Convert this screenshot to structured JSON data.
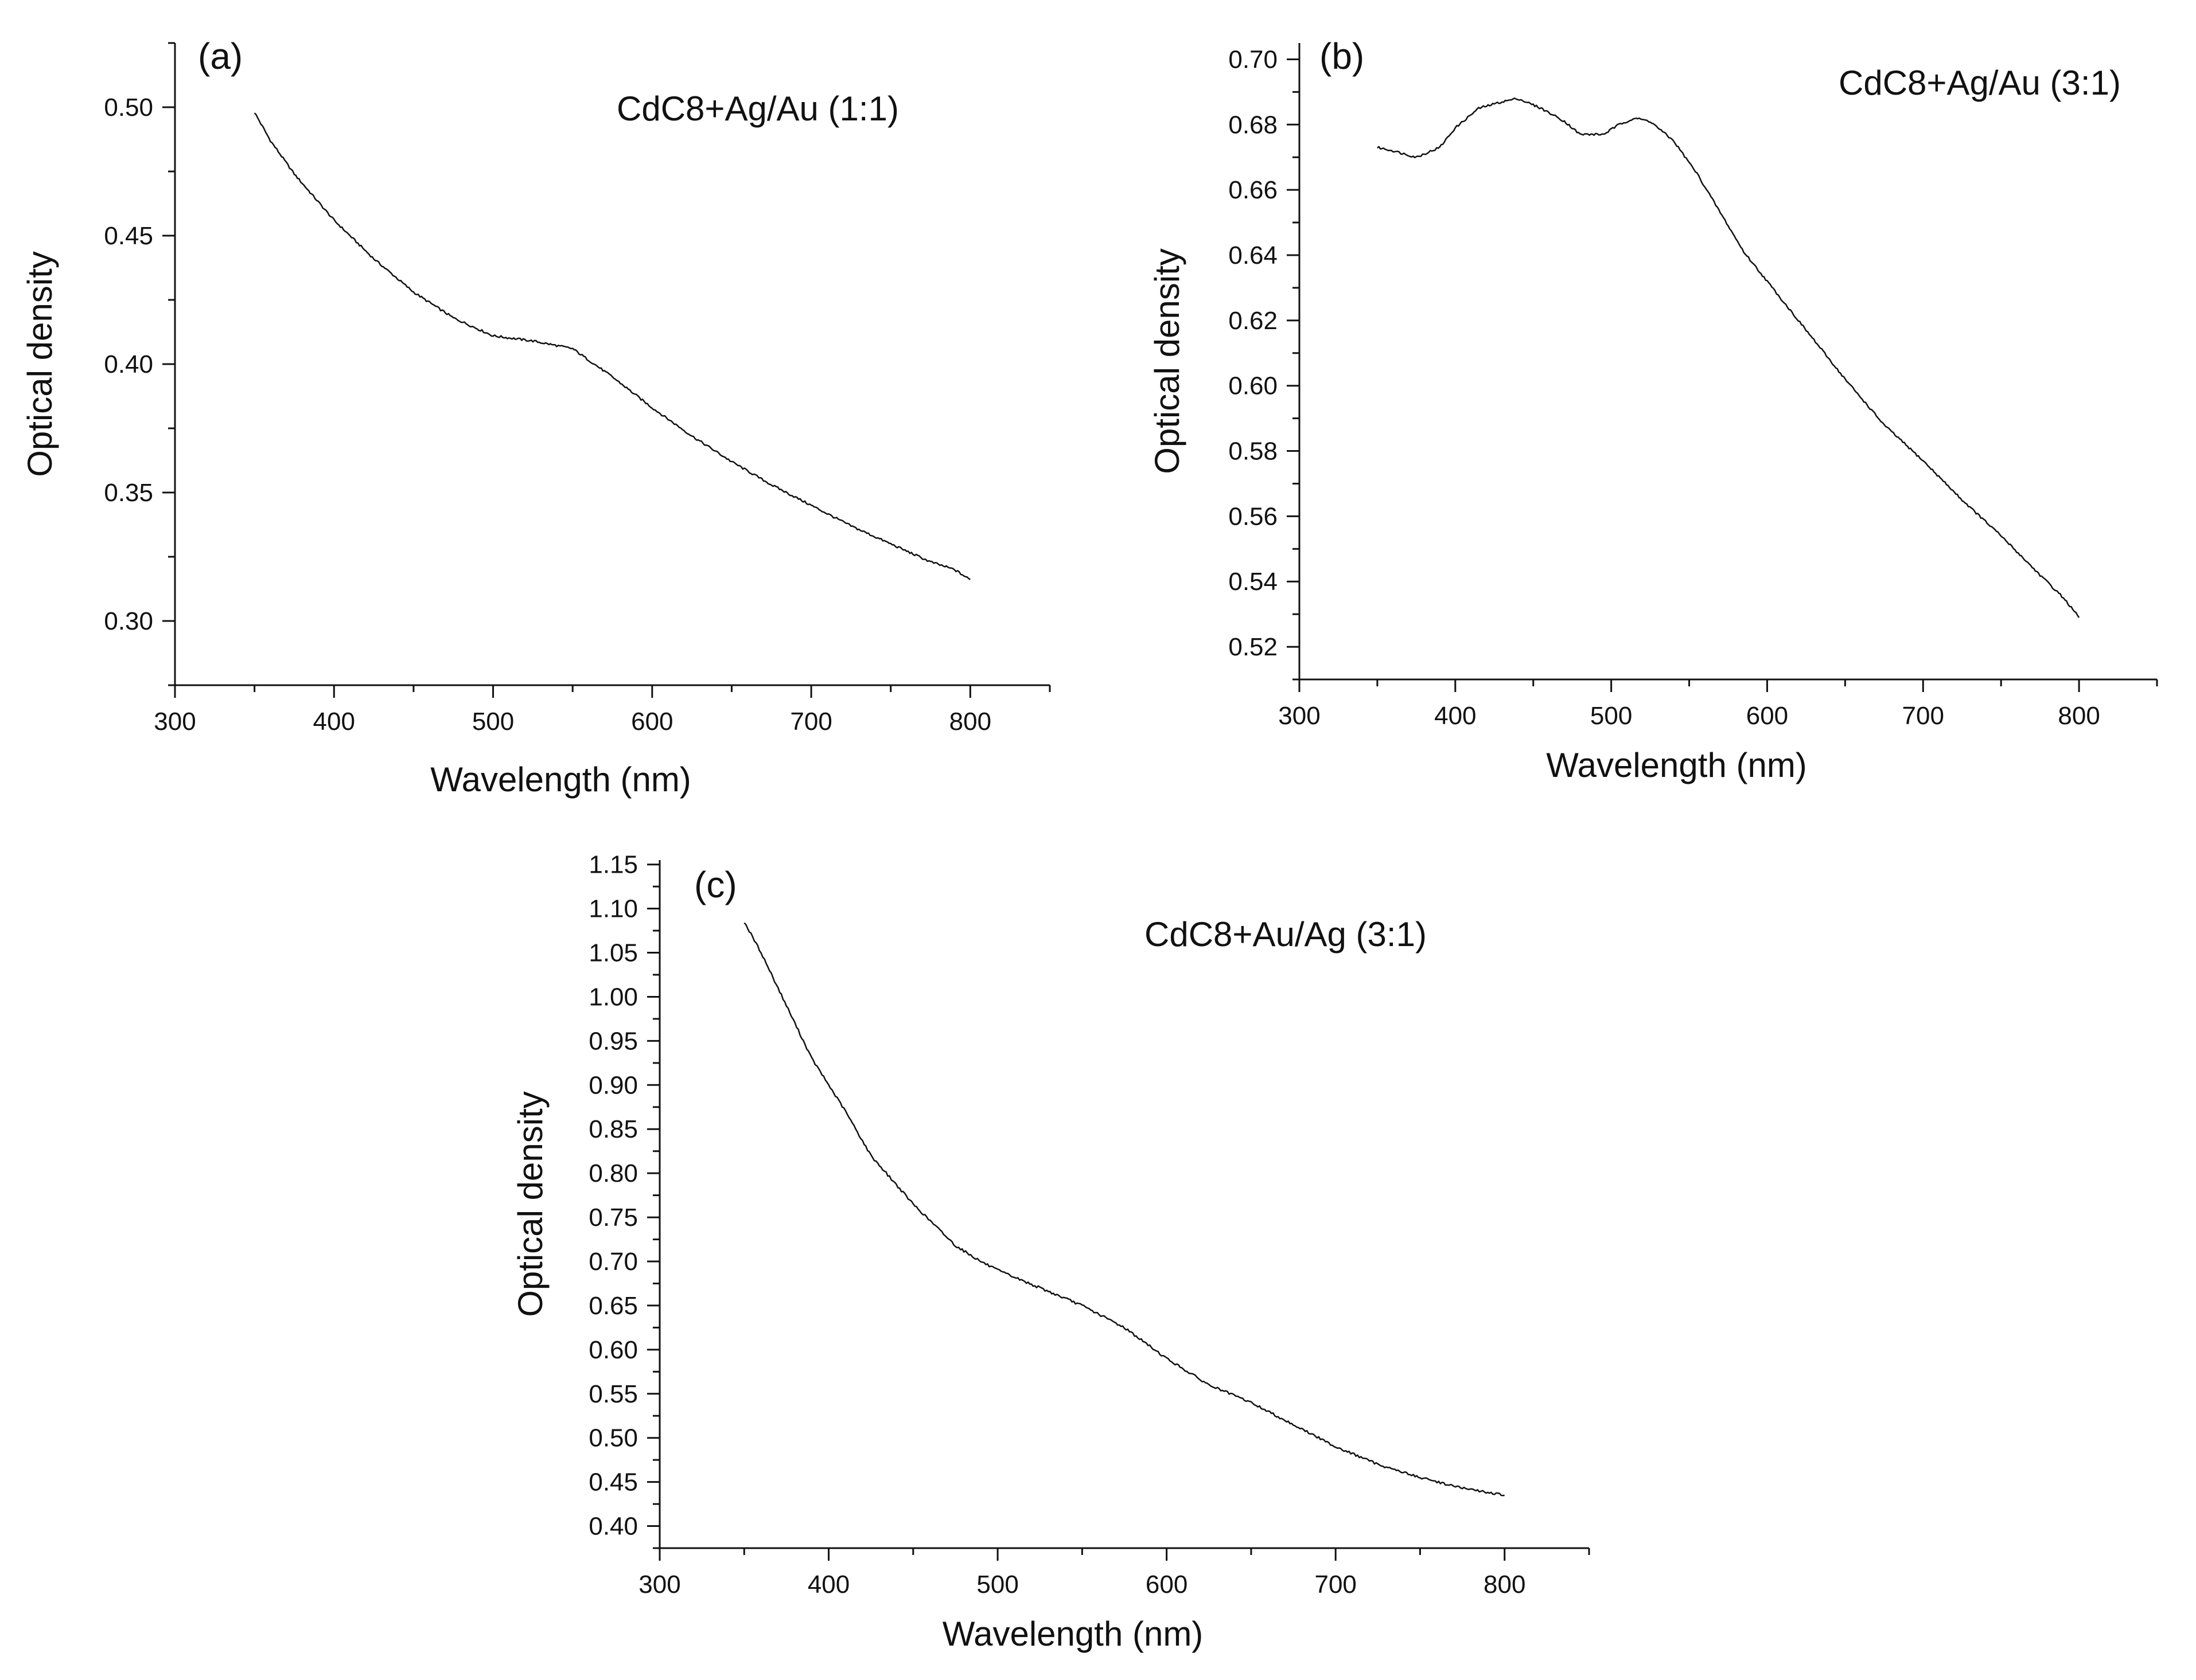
{
  "figure": {
    "colors": {
      "line": "#111111",
      "axis": "#111111",
      "background": "#ffffff"
    }
  },
  "chart_data": [
    {
      "type": "line",
      "panel_label": "(a)",
      "annotation": "CdC8+Ag/Au (1:1)",
      "xlabel": "Wavelength (nm)",
      "ylabel": "Optical density",
      "xlim": [
        300,
        850
      ],
      "ylim": [
        0.275,
        0.525
      ],
      "x_ticks": [
        300,
        400,
        500,
        600,
        700,
        800
      ],
      "x_tick_labels": [
        "300",
        "400",
        "500",
        "600",
        "700",
        "800"
      ],
      "y_ticks": [
        0.3,
        0.35,
        0.4,
        0.45,
        0.5
      ],
      "y_tick_labels": [
        "0.30",
        "0.35",
        "0.40",
        "0.45",
        "0.50"
      ],
      "grid": false,
      "series": [
        {
          "name": "CdC8+Ag/Au (1:1)",
          "x": [
            350,
            360,
            375,
            400,
            425,
            450,
            475,
            500,
            525,
            550,
            575,
            600,
            625,
            650,
            675,
            700,
            725,
            750,
            775,
            790,
            800
          ],
          "y": [
            0.498,
            0.487,
            0.474,
            0.456,
            0.441,
            0.428,
            0.418,
            0.411,
            0.409,
            0.406,
            0.395,
            0.383,
            0.372,
            0.362,
            0.353,
            0.345,
            0.337,
            0.33,
            0.323,
            0.32,
            0.316
          ]
        }
      ]
    },
    {
      "type": "line",
      "panel_label": "(b)",
      "annotation": "CdC8+Ag/Au (3:1)",
      "xlabel": "Wavelength (nm)",
      "ylabel": "Optical density",
      "xlim": [
        300,
        850
      ],
      "ylim": [
        0.51,
        0.705
      ],
      "x_ticks": [
        300,
        400,
        500,
        600,
        700,
        800
      ],
      "x_tick_labels": [
        "300",
        "400",
        "500",
        "600",
        "700",
        "800"
      ],
      "y_ticks": [
        0.52,
        0.54,
        0.56,
        0.58,
        0.6,
        0.62,
        0.64,
        0.66,
        0.68,
        0.7
      ],
      "y_tick_labels": [
        "0.52",
        "0.54",
        "0.56",
        "0.58",
        "0.60",
        "0.62",
        "0.64",
        "0.66",
        "0.68",
        "0.70"
      ],
      "grid": false,
      "series": [
        {
          "name": "CdC8+Ag/Au (3:1)",
          "x": [
            350,
            360,
            375,
            390,
            400,
            415,
            430,
            440,
            455,
            470,
            480,
            495,
            505,
            515,
            525,
            540,
            555,
            570,
            585,
            600,
            625,
            650,
            675,
            700,
            725,
            750,
            775,
            790,
            800
          ],
          "y": [
            0.673,
            0.672,
            0.67,
            0.673,
            0.679,
            0.685,
            0.687,
            0.688,
            0.685,
            0.681,
            0.677,
            0.677,
            0.68,
            0.682,
            0.681,
            0.675,
            0.665,
            0.653,
            0.641,
            0.632,
            0.617,
            0.602,
            0.588,
            0.577,
            0.565,
            0.554,
            0.542,
            0.535,
            0.529
          ]
        }
      ]
    },
    {
      "type": "line",
      "panel_label": "(c)",
      "annotation": "CdC8+Au/Ag (3:1)",
      "xlabel": "Wavelength (nm)",
      "ylabel": "Optical density",
      "xlim": [
        300,
        850
      ],
      "ylim": [
        0.375,
        1.155
      ],
      "x_ticks": [
        300,
        400,
        500,
        600,
        700,
        800
      ],
      "x_tick_labels": [
        "300",
        "400",
        "500",
        "600",
        "700",
        "800"
      ],
      "y_ticks": [
        0.4,
        0.45,
        0.5,
        0.55,
        0.6,
        0.65,
        0.7,
        0.75,
        0.8,
        0.85,
        0.9,
        0.95,
        1.0,
        1.05,
        1.1,
        1.15
      ],
      "y_tick_labels": [
        "0.40",
        "0.45",
        "0.50",
        "0.55",
        "0.60",
        "0.65",
        "0.70",
        "0.75",
        "0.80",
        "0.85",
        "0.90",
        "0.95",
        "1.00",
        "1.05",
        "1.10",
        "1.15"
      ],
      "grid": false,
      "series": [
        {
          "name": "CdC8+Au/Ag (3:1)",
          "x": [
            350,
            360,
            375,
            390,
            400,
            410,
            425,
            450,
            475,
            490,
            500,
            525,
            550,
            575,
            600,
            625,
            650,
            675,
            700,
            725,
            750,
            775,
            800
          ],
          "y": [
            1.085,
            1.05,
            0.99,
            0.93,
            0.9,
            0.87,
            0.82,
            0.765,
            0.718,
            0.7,
            0.69,
            0.67,
            0.65,
            0.625,
            0.59,
            0.56,
            0.54,
            0.515,
            0.49,
            0.47,
            0.455,
            0.443,
            0.435
          ]
        }
      ]
    }
  ]
}
